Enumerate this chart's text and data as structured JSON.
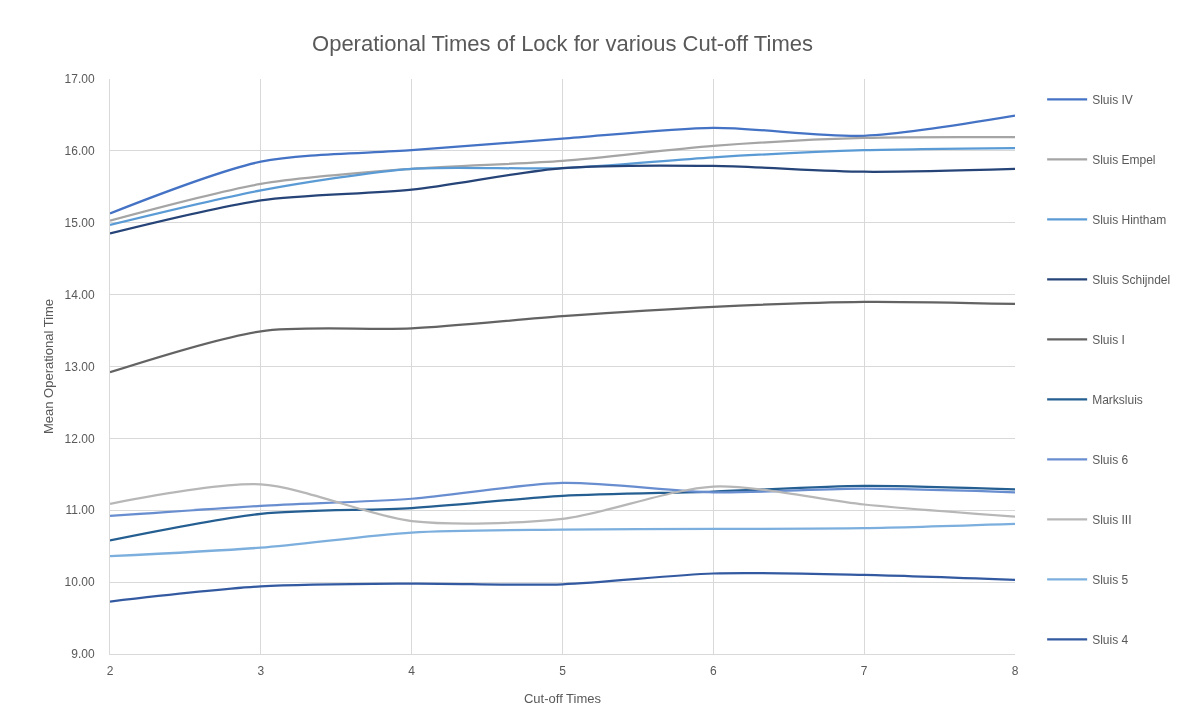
{
  "chart_data": {
    "type": "line",
    "title": "Operational Times of Lock for various Cut-off Times",
    "xlabel": "Cut-off Times",
    "ylabel": "Mean Operational Time",
    "x": [
      2,
      3,
      4,
      5,
      6,
      7,
      8
    ],
    "xlim": [
      2,
      8
    ],
    "xticks": [
      2,
      3,
      4,
      5,
      6,
      7,
      8
    ],
    "ylim": [
      9,
      17
    ],
    "yticks": [
      {
        "value": 9,
        "label": "9.00"
      },
      {
        "value": 10,
        "label": "10.00"
      },
      {
        "value": 11,
        "label": "11.00"
      },
      {
        "value": 12,
        "label": "12.00"
      },
      {
        "value": 13,
        "label": "13.00"
      },
      {
        "value": 14,
        "label": "14.00"
      },
      {
        "value": 15,
        "label": "15.00"
      },
      {
        "value": 16,
        "label": "16.00"
      },
      {
        "value": 17,
        "label": "17.00"
      }
    ],
    "grid": true,
    "legend": "right",
    "marker": "none",
    "line_style": "solid",
    "series": [
      {
        "name": "Sluis IV",
        "color": "#4472c4",
        "values": [
          15.13,
          15.85,
          16.01,
          16.17,
          16.32,
          16.21,
          16.49
        ]
      },
      {
        "name": "Sluis Empel",
        "color": "#a5a5a5",
        "values": [
          15.03,
          15.54,
          15.75,
          15.86,
          16.07,
          16.18,
          16.19
        ]
      },
      {
        "name": "Sluis Hintham",
        "color": "#5b9bd5",
        "values": [
          14.97,
          15.45,
          15.75,
          15.76,
          15.91,
          16.01,
          16.04
        ]
      },
      {
        "name": "Sluis Schijndel",
        "color": "#264478",
        "values": [
          14.85,
          15.31,
          15.46,
          15.76,
          15.79,
          15.71,
          15.75
        ]
      },
      {
        "name": "Sluis I",
        "color": "#636363",
        "values": [
          12.92,
          13.49,
          13.53,
          13.7,
          13.83,
          13.9,
          13.87
        ]
      },
      {
        "name": "Marksluis",
        "color": "#255e91",
        "values": [
          10.58,
          10.95,
          11.03,
          11.2,
          11.26,
          11.34,
          11.29
        ]
      },
      {
        "name": "Sluis 6",
        "color": "#698ed0",
        "values": [
          10.92,
          11.06,
          11.16,
          11.38,
          11.25,
          11.3,
          11.25
        ]
      },
      {
        "name": "Sluis III",
        "color": "#b7b7b7",
        "values": [
          11.09,
          11.36,
          10.85,
          10.88,
          11.33,
          11.08,
          10.91
        ]
      },
      {
        "name": "Sluis 5",
        "color": "#7cafdd",
        "values": [
          10.36,
          10.48,
          10.69,
          10.73,
          10.74,
          10.75,
          10.81
        ]
      },
      {
        "name": "Sluis 4",
        "color": "#335aa1",
        "values": [
          9.73,
          9.94,
          9.98,
          9.97,
          10.12,
          10.1,
          10.03
        ]
      }
    ]
  }
}
